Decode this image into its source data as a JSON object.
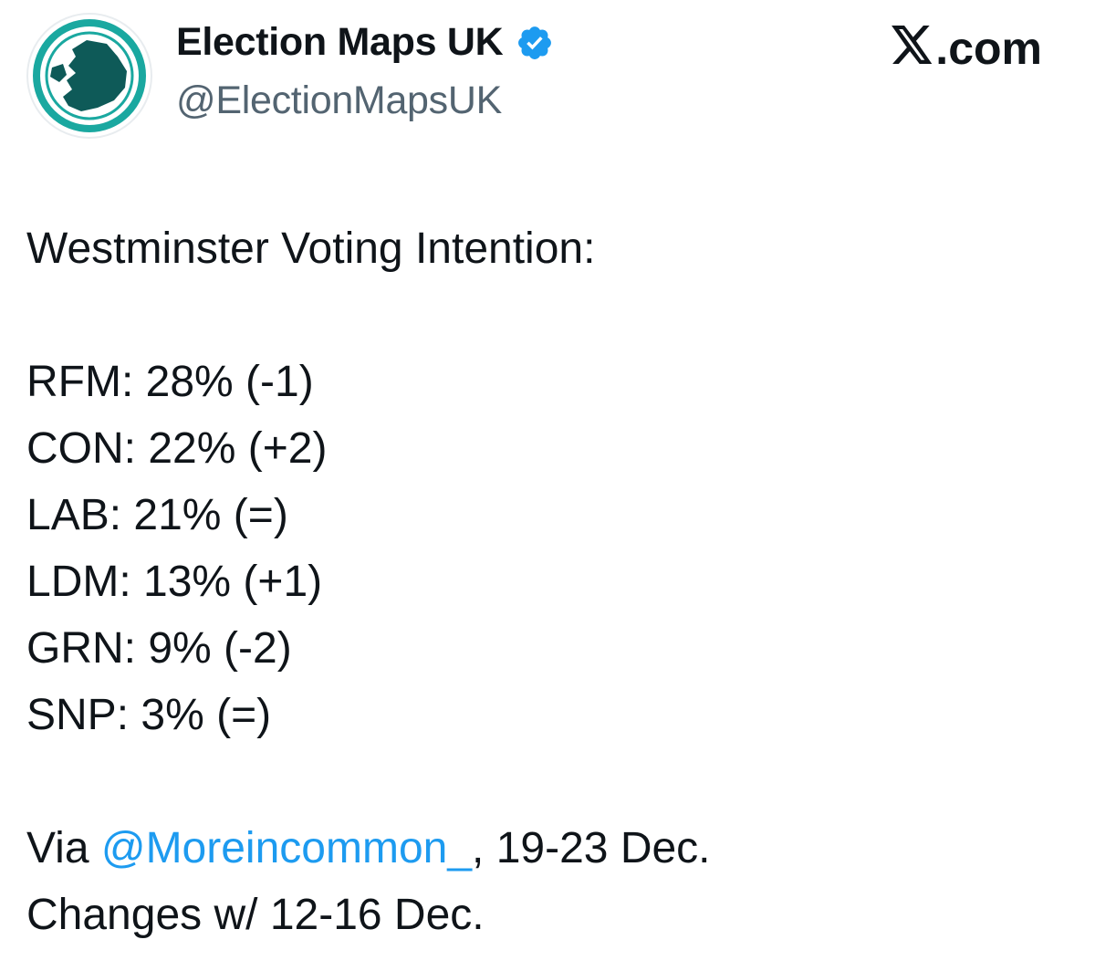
{
  "account": {
    "display_name": "Election Maps UK",
    "handle": "@ElectionMapsUK",
    "verified": true,
    "avatar_icon": "uk-map-logo-icon",
    "avatar_colors": {
      "ring": "#1aa8a0",
      "map": "#0e5a58"
    }
  },
  "brand": {
    "logo_icon": "x-logo-icon",
    "label": ".com"
  },
  "post": {
    "heading": "Westminster Voting Intention:",
    "results": [
      {
        "text": "RFM: 28% (-1)"
      },
      {
        "text": "CON: 22% (+2)"
      },
      {
        "text": "LAB: 21% (=)"
      },
      {
        "text": "LDM: 13% (+1)"
      },
      {
        "text": "GRN: 9% (-2)"
      },
      {
        "text": "SNP: 3% (=)"
      }
    ],
    "source_prefix": "Via ",
    "source_mention": "@Moreincommon_",
    "source_suffix": ", 19-23 Dec.",
    "changes_note": "Changes w/ 12-16 Dec."
  },
  "colors": {
    "text": "#0f1419",
    "handle": "#536471",
    "link": "#1d9bf0",
    "verified": "#1d9bf0"
  }
}
